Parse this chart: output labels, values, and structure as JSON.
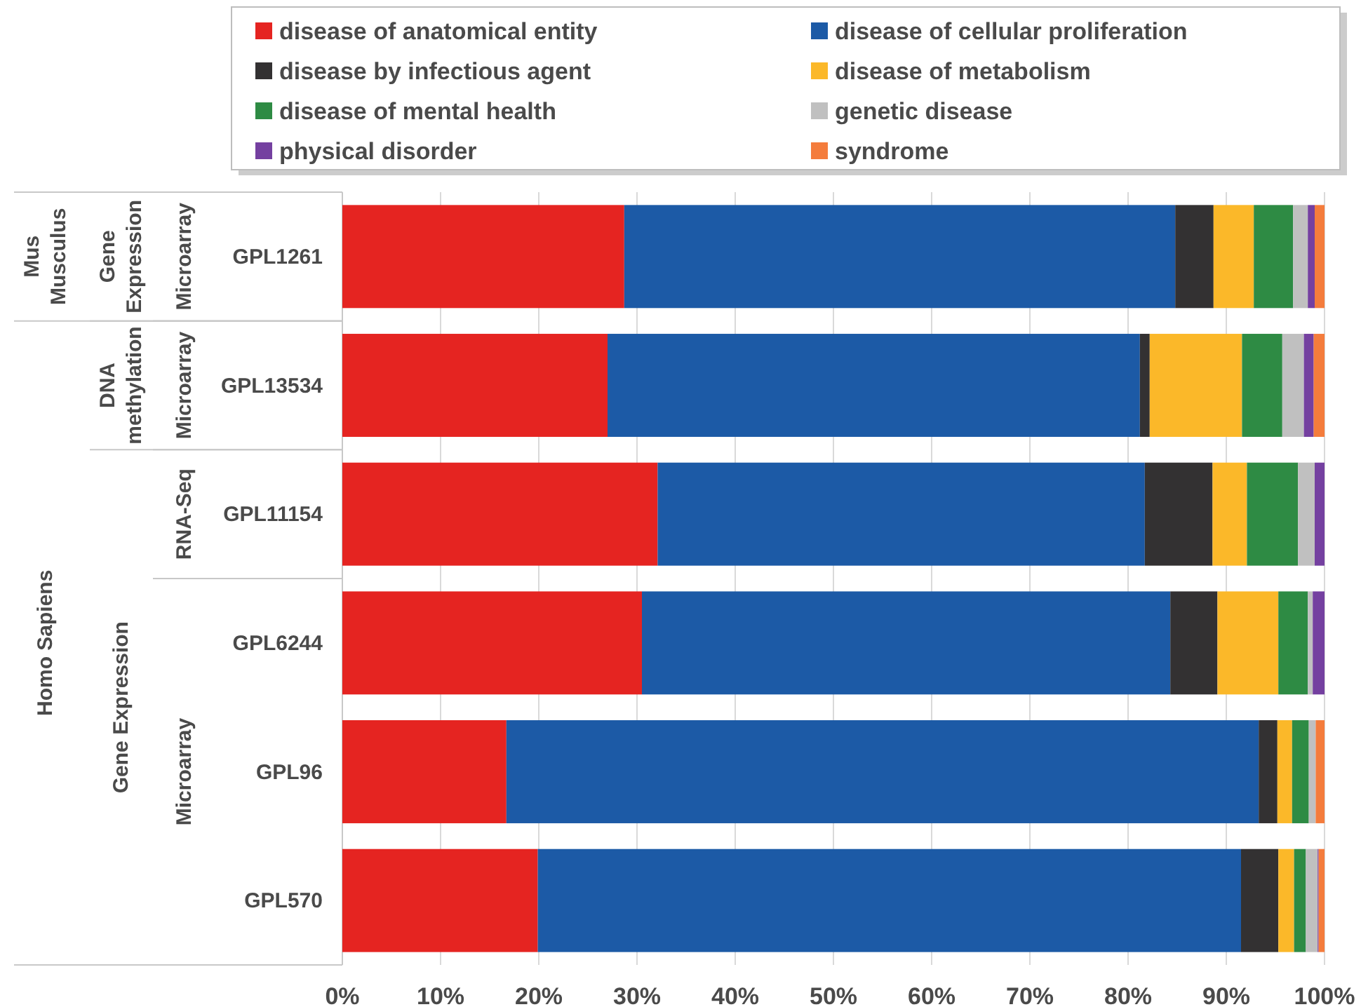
{
  "chart_data": {
    "type": "bar",
    "orientation": "horizontal",
    "stacked": true,
    "categories": [
      "GPL1261",
      "GPL13534",
      "GPL11154",
      "GPL6244",
      "GPL96",
      "GPL570"
    ],
    "series": [
      {
        "name": "disease of anatomical entity",
        "color": "#e52421",
        "values": [
          28.7,
          27.0,
          32.1,
          30.5,
          16.7,
          19.9
        ]
      },
      {
        "name": "disease of cellular proliferation",
        "color": "#1c5aa6",
        "values": [
          56.1,
          54.2,
          49.6,
          53.8,
          76.6,
          71.6
        ]
      },
      {
        "name": "disease by infectious agent",
        "color": "#333132",
        "values": [
          3.9,
          1.0,
          6.9,
          4.8,
          1.9,
          3.8
        ]
      },
      {
        "name": "disease of metabolism",
        "color": "#fbb829",
        "values": [
          4.1,
          9.4,
          3.5,
          6.2,
          1.5,
          1.6
        ]
      },
      {
        "name": "disease of mental health",
        "color": "#2e8b44",
        "values": [
          4.0,
          4.1,
          5.2,
          3.0,
          1.7,
          1.2
        ]
      },
      {
        "name": "genetic disease",
        "color": "#c0c0c0",
        "values": [
          1.5,
          2.2,
          1.7,
          0.5,
          0.7,
          1.2
        ]
      },
      {
        "name": "physical disorder",
        "color": "#7440a0",
        "values": [
          0.7,
          1.0,
          1.0,
          1.2,
          0,
          0.1
        ]
      },
      {
        "name": "syndrome",
        "color": "#f47c3c",
        "values": [
          1.0,
          1.1,
          0,
          0,
          0.9,
          0.6
        ]
      }
    ],
    "xlim": [
      0,
      100
    ],
    "xticks": [
      {
        "value": 0,
        "label": "0%"
      },
      {
        "value": 10,
        "label": "10%"
      },
      {
        "value": 20,
        "label": "20%"
      },
      {
        "value": 30,
        "label": "30%"
      },
      {
        "value": 40,
        "label": "40%"
      },
      {
        "value": 50,
        "label": "50%"
      },
      {
        "value": 60,
        "label": "60%"
      },
      {
        "value": 70,
        "label": "70%"
      },
      {
        "value": 80,
        "label": "80%"
      },
      {
        "value": 90,
        "label": "90%"
      },
      {
        "value": 100,
        "label": "100%"
      }
    ],
    "grid": "x",
    "legend": "top",
    "annotations": [
      "Mus Musculus",
      "Gene Expression",
      "Microarray",
      "DNA methylation",
      "Microarray",
      "RNA-Seq",
      "Homo Sapiens",
      "Gene Expression",
      "Microarray"
    ]
  }
}
